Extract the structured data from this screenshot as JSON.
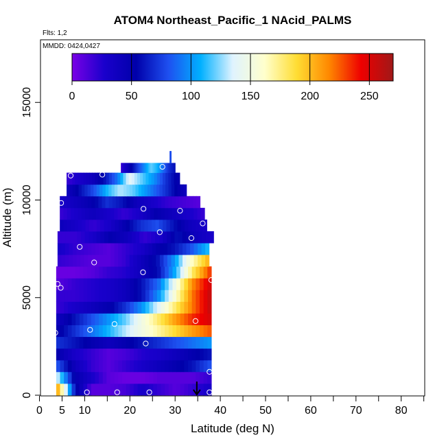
{
  "chart_data": {
    "type": "heatmap",
    "title": "ATOM4 Northeast_Pacific_1 NAcid_PALMS",
    "subtitle": "Flts: 1,2",
    "annotation": "MMDD: 0424,0427",
    "xlabel": "Latitude (deg N)",
    "ylabel": "Altitude (m)",
    "xlim": [
      0,
      85
    ],
    "ylim": [
      0,
      17600
    ],
    "x_ticks": [
      0,
      5,
      10,
      20,
      30,
      40,
      50,
      60,
      70,
      80
    ],
    "x_tick_labels": [
      "0",
      "5",
      "10",
      "20",
      "30",
      "40",
      "50",
      "60",
      "70",
      "80"
    ],
    "x_minor_ticks": [
      15,
      25,
      35,
      45,
      55,
      65,
      75,
      85
    ],
    "y_ticks": [
      0,
      5000,
      10000,
      15000
    ],
    "y_tick_labels": [
      "0",
      "5000",
      "10000",
      "15000"
    ],
    "colorbar": {
      "range": [
        0,
        270
      ],
      "ticks": [
        0,
        50,
        100,
        150,
        200,
        250
      ],
      "tick_labels": [
        "0",
        "50",
        "100",
        "150",
        "200",
        "250"
      ],
      "colors": [
        "#7a00e6",
        "#1a00cc",
        "#0000aa",
        "#1e50f0",
        "#00b0ff",
        "#dff3ff",
        "#ffffcc",
        "#ffdd33",
        "#ff8800",
        "#ee0000",
        "#a01818"
      ]
    },
    "heatmap_rows": [
      {
        "alt_min": 0,
        "alt_max": 600,
        "lat_min": 3.7,
        "lat_max": 38,
        "values": [
          200,
          60,
          10,
          10,
          15,
          30,
          20,
          10,
          20,
          30
        ]
      },
      {
        "alt_min": 600,
        "alt_max": 1200,
        "lat_min": 3.7,
        "lat_max": 38,
        "values": [
          130,
          50,
          30,
          10,
          5,
          5,
          10,
          10,
          10,
          20
        ]
      },
      {
        "alt_min": 1200,
        "alt_max": 1800,
        "lat_min": 3.7,
        "lat_max": 38,
        "values": [
          80,
          40,
          20,
          10,
          20,
          30,
          40,
          50,
          60,
          80
        ]
      },
      {
        "alt_min": 1800,
        "alt_max": 2400,
        "lat_min": 3.7,
        "lat_max": 38,
        "values": [
          50,
          30,
          20,
          10,
          15,
          25,
          30,
          40,
          50,
          60
        ]
      },
      {
        "alt_min": 2400,
        "alt_max": 3000,
        "lat_min": 3.7,
        "lat_max": 38,
        "values": [
          70,
          60,
          50,
          40,
          50,
          60,
          70,
          80,
          90,
          100
        ]
      },
      {
        "alt_min": 3000,
        "alt_max": 3600,
        "lat_min": 3.7,
        "lat_max": 38,
        "values": [
          50,
          70,
          90,
          110,
          130,
          150,
          170,
          190,
          210,
          225
        ]
      },
      {
        "alt_min": 3600,
        "alt_max": 4200,
        "lat_min": 3.7,
        "lat_max": 38,
        "values": [
          40,
          60,
          80,
          100,
          120,
          150,
          180,
          210,
          235,
          250
        ]
      },
      {
        "alt_min": 4200,
        "alt_max": 4800,
        "lat_min": 3.7,
        "lat_max": 38,
        "values": [
          20,
          30,
          40,
          50,
          70,
          100,
          140,
          180,
          220,
          255
        ]
      },
      {
        "alt_min": 4800,
        "alt_max": 5400,
        "lat_min": 3.7,
        "lat_max": 38,
        "values": [
          20,
          20,
          25,
          30,
          40,
          60,
          100,
          160,
          220,
          255
        ]
      },
      {
        "alt_min": 5400,
        "alt_max": 6000,
        "lat_min": 3.7,
        "lat_max": 38,
        "values": [
          10,
          20,
          25,
          30,
          40,
          60,
          90,
          150,
          215,
          250
        ]
      },
      {
        "alt_min": 6000,
        "alt_max": 6600,
        "lat_min": 3.7,
        "lat_max": 38,
        "values": [
          5,
          5,
          10,
          20,
          25,
          40,
          60,
          110,
          180,
          230
        ]
      },
      {
        "alt_min": 6600,
        "alt_max": 7200,
        "lat_min": 4.0,
        "lat_max": 37.5,
        "values": [
          20,
          15,
          10,
          10,
          20,
          40,
          60,
          100,
          160,
          200
        ]
      },
      {
        "alt_min": 7200,
        "alt_max": 7800,
        "lat_min": 4.0,
        "lat_max": 37.5,
        "values": [
          30,
          20,
          15,
          10,
          20,
          30,
          50,
          60,
          80,
          110
        ]
      },
      {
        "alt_min": 7800,
        "alt_max": 8400,
        "lat_min": 4.0,
        "lat_max": 38.5,
        "values": [
          20,
          20,
          30,
          50,
          40,
          20,
          30,
          60,
          40,
          30
        ]
      },
      {
        "alt_min": 8400,
        "alt_max": 9000,
        "lat_min": 4.5,
        "lat_max": 37.0,
        "values": [
          40,
          30,
          20,
          30,
          50,
          70,
          80,
          60,
          40,
          30
        ]
      },
      {
        "alt_min": 9000,
        "alt_max": 9600,
        "lat_min": 4.5,
        "lat_max": 36.5,
        "values": [
          20,
          30,
          40,
          30,
          20,
          30,
          50,
          40,
          30,
          20
        ]
      },
      {
        "alt_min": 9600,
        "alt_max": 10200,
        "lat_min": 4.5,
        "lat_max": 35.5,
        "values": [
          30,
          40,
          50,
          70,
          60,
          40,
          30,
          20,
          15,
          10
        ]
      },
      {
        "alt_min": 10200,
        "alt_max": 10800,
        "lat_min": 6.0,
        "lat_max": 32.5,
        "values": [
          40,
          60,
          80,
          110,
          130,
          120,
          100,
          80,
          60,
          40
        ]
      },
      {
        "alt_min": 10800,
        "alt_max": 11400,
        "lat_min": 6.0,
        "lat_max": 31.0,
        "values": [
          20,
          30,
          40,
          60,
          90,
          140,
          120,
          100,
          70,
          50
        ]
      },
      {
        "alt_min": 11400,
        "alt_max": 11900,
        "lat_min": 18.0,
        "lat_max": 30.0,
        "values": [
          20,
          40,
          60,
          80,
          100,
          120,
          110,
          90,
          70,
          60
        ]
      },
      {
        "alt_min": 11900,
        "alt_max": 12500,
        "lat_min": 28.8,
        "lat_max": 29.1,
        "values": [
          80
        ]
      }
    ],
    "sample_points": [
      {
        "x": 10.5,
        "y": 150
      },
      {
        "x": 17.2,
        "y": 150
      },
      {
        "x": 24.3,
        "y": 150
      },
      {
        "x": 37.6,
        "y": 150
      },
      {
        "x": 37.6,
        "y": 1200
      },
      {
        "x": 23.5,
        "y": 2650
      },
      {
        "x": 11.2,
        "y": 3350
      },
      {
        "x": 3.5,
        "y": 3200
      },
      {
        "x": 16.6,
        "y": 3650
      },
      {
        "x": 34.5,
        "y": 3800
      },
      {
        "x": 4.7,
        "y": 5500
      },
      {
        "x": 4.0,
        "y": 5700
      },
      {
        "x": 38.0,
        "y": 5900
      },
      {
        "x": 22.9,
        "y": 6300
      },
      {
        "x": 12.1,
        "y": 6800
      },
      {
        "x": 8.9,
        "y": 7600
      },
      {
        "x": 33.6,
        "y": 8050
      },
      {
        "x": 26.6,
        "y": 8350
      },
      {
        "x": 36.1,
        "y": 8800
      },
      {
        "x": 23.0,
        "y": 9550
      },
      {
        "x": 31.1,
        "y": 9450
      },
      {
        "x": 4.8,
        "y": 9850
      },
      {
        "x": 6.9,
        "y": 11250
      },
      {
        "x": 13.9,
        "y": 11300
      },
      {
        "x": 27.2,
        "y": 11700
      }
    ],
    "arrow": {
      "x": 34.8,
      "y_from": 700,
      "y_to": 0
    }
  }
}
